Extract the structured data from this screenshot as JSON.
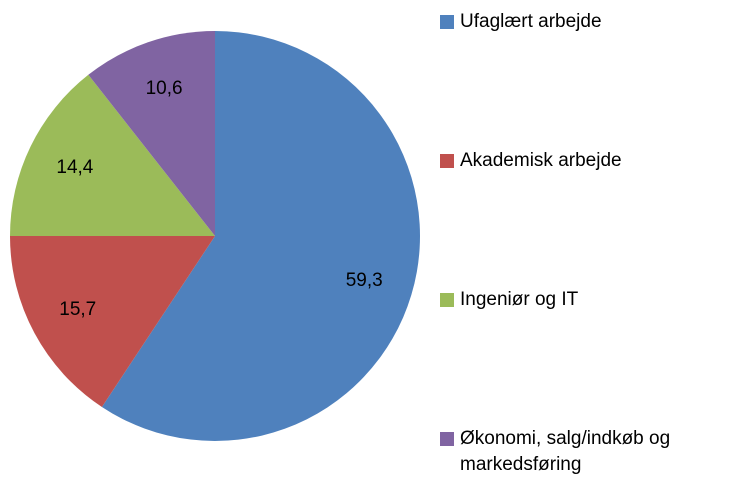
{
  "chart_data": {
    "type": "pie",
    "categories": [
      "Ufaglært arbejde",
      "Akademisk arbejde",
      "Ingeniør og IT",
      "Økonomi, salg/indkøb og markedsføring"
    ],
    "values": [
      59.3,
      15.7,
      14.4,
      10.6
    ],
    "value_labels": [
      "59,3",
      "15,7",
      "14,4",
      "10,6"
    ],
    "colors": [
      "#4f81bd",
      "#c0504d",
      "#9bbb59",
      "#8064a2"
    ],
    "legend": "right"
  }
}
